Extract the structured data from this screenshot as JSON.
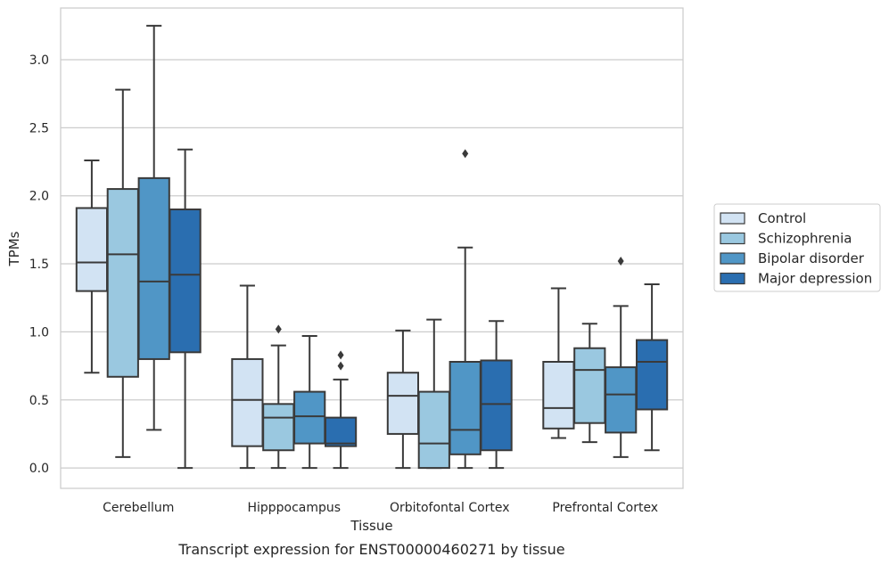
{
  "chart_data": {
    "type": "box",
    "caption": "Transcript expression for ENST00000460271 by tissue",
    "xlabel": "Tissue",
    "ylabel": "TPMs",
    "ylim": [
      -0.15,
      3.38
    ],
    "yticks": [
      0.0,
      0.5,
      1.0,
      1.5,
      2.0,
      2.5,
      3.0
    ],
    "ytick_labels": [
      "0.0",
      "0.5",
      "1.0",
      "1.5",
      "2.0",
      "2.5",
      "3.0"
    ],
    "grid": "horizontal",
    "legend_position": "right",
    "categories": [
      "Cerebellum",
      "Hipppocampus",
      "Orbitofontal Cortex",
      "Prefrontal Cortex"
    ],
    "series": [
      {
        "name": "Control",
        "color": "#d2e3f3",
        "boxes": [
          {
            "whisker_low": 0.7,
            "q1": 1.3,
            "median": 1.51,
            "q3": 1.91,
            "whisker_high": 2.26,
            "outliers": []
          },
          {
            "whisker_low": 0.0,
            "q1": 0.16,
            "median": 0.5,
            "q3": 0.8,
            "whisker_high": 1.34,
            "outliers": []
          },
          {
            "whisker_low": 0.0,
            "q1": 0.25,
            "median": 0.53,
            "q3": 0.7,
            "whisker_high": 1.01,
            "outliers": []
          },
          {
            "whisker_low": 0.22,
            "q1": 0.29,
            "median": 0.44,
            "q3": 0.78,
            "whisker_high": 1.32,
            "outliers": []
          }
        ]
      },
      {
        "name": "Schizophrenia",
        "color": "#9ac8e0",
        "boxes": [
          {
            "whisker_low": 0.08,
            "q1": 0.67,
            "median": 1.57,
            "q3": 2.05,
            "whisker_high": 2.78,
            "outliers": []
          },
          {
            "whisker_low": 0.0,
            "q1": 0.13,
            "median": 0.37,
            "q3": 0.47,
            "whisker_high": 0.9,
            "outliers": [
              1.02
            ]
          },
          {
            "whisker_low": 0.0,
            "q1": 0.0,
            "median": 0.18,
            "q3": 0.56,
            "whisker_high": 1.09,
            "outliers": []
          },
          {
            "whisker_low": 0.19,
            "q1": 0.33,
            "median": 0.72,
            "q3": 0.88,
            "whisker_high": 1.06,
            "outliers": []
          }
        ]
      },
      {
        "name": "Bipolar disorder",
        "color": "#5096c6",
        "boxes": [
          {
            "whisker_low": 0.28,
            "q1": 0.8,
            "median": 1.37,
            "q3": 2.13,
            "whisker_high": 3.25,
            "outliers": []
          },
          {
            "whisker_low": 0.0,
            "q1": 0.18,
            "median": 0.38,
            "q3": 0.56,
            "whisker_high": 0.97,
            "outliers": []
          },
          {
            "whisker_low": 0.0,
            "q1": 0.1,
            "median": 0.28,
            "q3": 0.78,
            "whisker_high": 1.62,
            "outliers": [
              2.31
            ]
          },
          {
            "whisker_low": 0.08,
            "q1": 0.26,
            "median": 0.54,
            "q3": 0.74,
            "whisker_high": 1.19,
            "outliers": [
              1.52
            ]
          }
        ]
      },
      {
        "name": "Major depression",
        "color": "#2a6eb0",
        "boxes": [
          {
            "whisker_low": 0.0,
            "q1": 0.85,
            "median": 1.42,
            "q3": 1.9,
            "whisker_high": 2.34,
            "outliers": []
          },
          {
            "whisker_low": 0.0,
            "q1": 0.16,
            "median": 0.18,
            "q3": 0.37,
            "whisker_high": 0.65,
            "outliers": [
              0.75,
              0.83
            ]
          },
          {
            "whisker_low": 0.0,
            "q1": 0.13,
            "median": 0.47,
            "q3": 0.79,
            "whisker_high": 1.08,
            "outliers": []
          },
          {
            "whisker_low": 0.13,
            "q1": 0.43,
            "median": 0.78,
            "q3": 0.94,
            "whisker_high": 1.35,
            "outliers": []
          }
        ]
      }
    ]
  }
}
